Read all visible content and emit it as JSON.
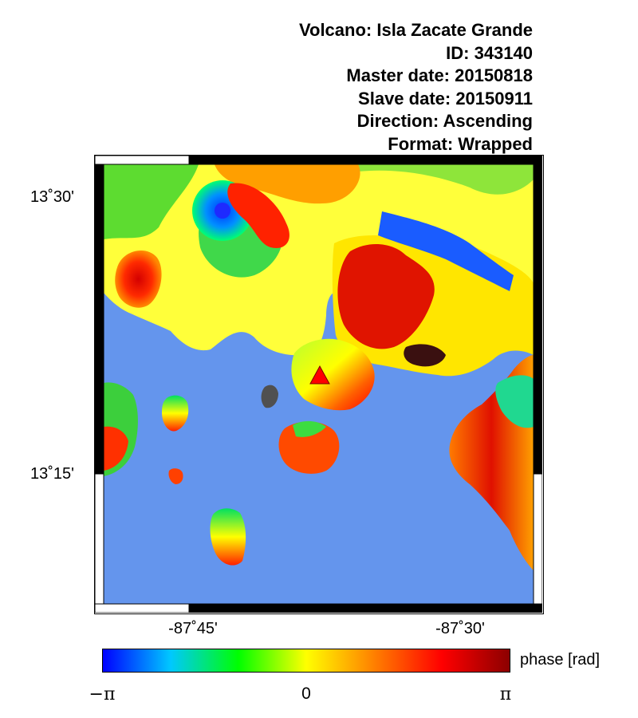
{
  "header": {
    "lines": [
      "Volcano: Isla Zacate Grande",
      "ID: 343140",
      "Master date: 20150818",
      "Slave date: 20150911",
      "Direction: Ascending",
      "Format: Wrapped"
    ]
  },
  "map": {
    "lat_ticks": [
      "13˚30'",
      "13˚15'"
    ],
    "lon_ticks": [
      "-87˚45'",
      "-87˚30'"
    ],
    "water_color": "#6495ed",
    "volcano_marker_color": "#ff0000",
    "volcano_marker_icon": "triangle-icon"
  },
  "colorbar": {
    "label": "phase [rad]",
    "ticks": [
      "−π",
      "0",
      "π"
    ],
    "colors": [
      "#0000ff",
      "#00c8ff",
      "#00ff00",
      "#ffff00",
      "#ff8000",
      "#ff0000",
      "#8c0000"
    ]
  }
}
